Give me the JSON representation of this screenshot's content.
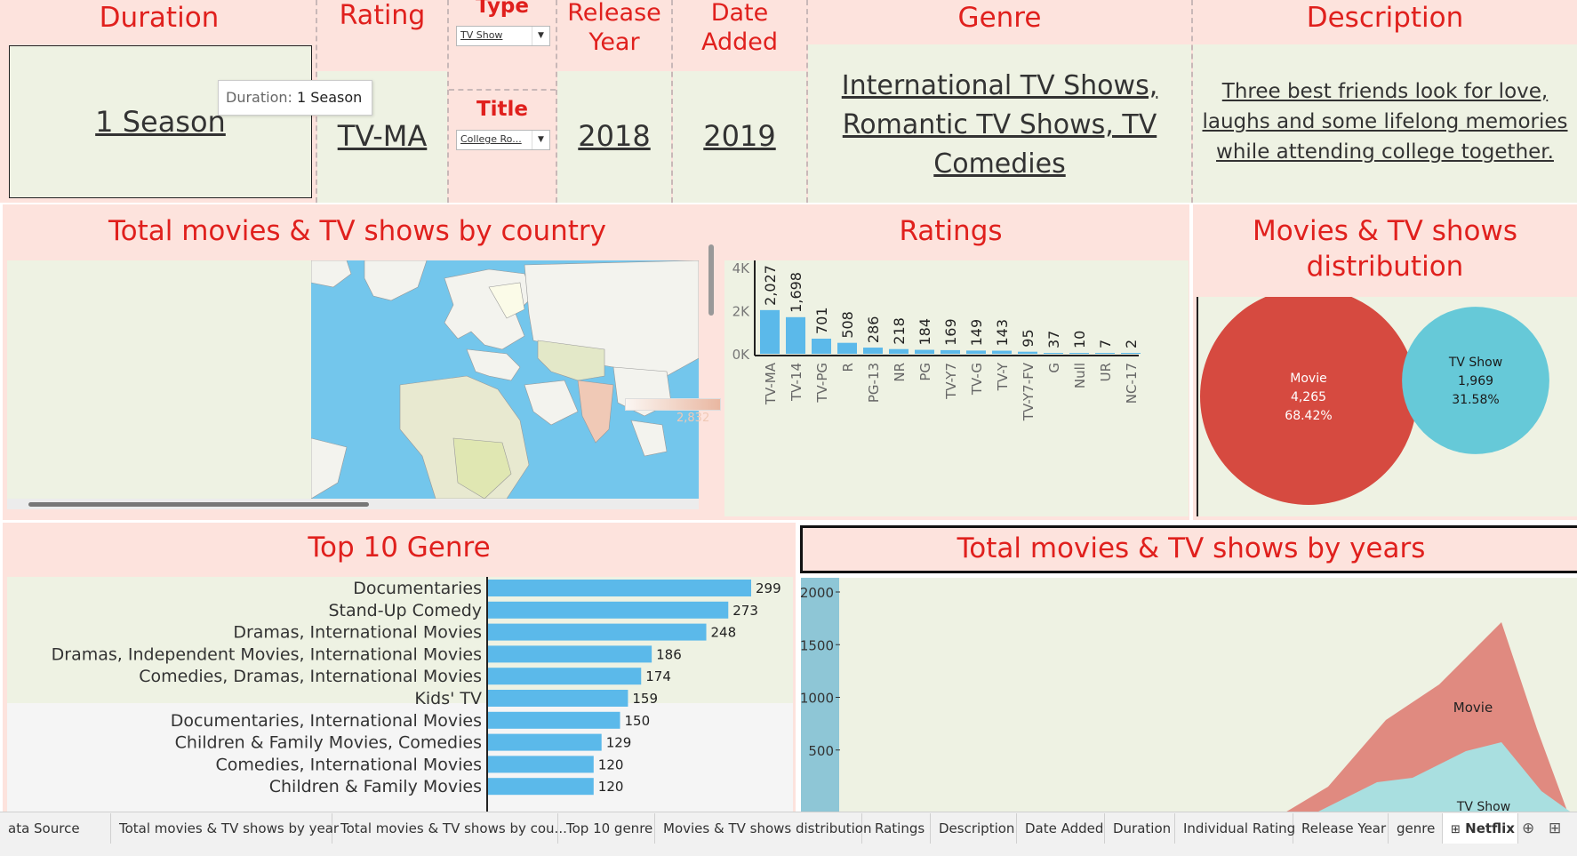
{
  "kpis": {
    "duration": {
      "title": "Duration",
      "value": "1 Season"
    },
    "rating": {
      "title": "Rating",
      "value": "TV-MA"
    },
    "type": {
      "title": "Type",
      "selected": "TV Show"
    },
    "title_filter": {
      "title": "Title",
      "selected": "College Ro..."
    },
    "release_year": {
      "title_line1": "Release",
      "title_line2": "Year",
      "value": "2018"
    },
    "date_added": {
      "title_line1": "Date",
      "title_line2": "Added",
      "value": "2019"
    },
    "genre": {
      "title": "Genre",
      "line1": "International TV Shows,",
      "line2": "Romantic TV Shows, TV",
      "line3": "Comedies"
    },
    "description": {
      "title": "Description",
      "line1": "Three best friends look for love,",
      "line2": "laughs and some lifelong memories",
      "line3": "while attending college together."
    }
  },
  "tooltip": {
    "label": "Duration:",
    "value": "1 Season"
  },
  "map_section": {
    "title": "Total movies & TV shows by country",
    "legend_max": "2,832"
  },
  "ratings_chart": {
    "title": "Ratings"
  },
  "distribution_chart": {
    "title_line1": "Movies & TV shows",
    "title_line2": "distribution"
  },
  "genre_chart": {
    "title": "Top 10 Genre",
    "partial_label": "Children & Family Movies",
    "partial_value": "120"
  },
  "years_chart": {
    "title": "Total movies & TV shows by years",
    "label_movie": "Movie",
    "label_tv": "TV Show"
  },
  "chart_data": [
    {
      "type": "bar",
      "title": "Ratings",
      "categories": [
        "TV-MA",
        "TV-14",
        "TV-PG",
        "R",
        "PG-13",
        "NR",
        "PG",
        "TV-Y7",
        "TV-G",
        "TV-Y",
        "TV-Y7-FV",
        "G",
        "Null",
        "UR",
        "NC-17"
      ],
      "values": [
        2027,
        1698,
        701,
        508,
        286,
        218,
        184,
        169,
        149,
        143,
        95,
        37,
        10,
        7,
        2
      ],
      "value_labels": [
        "2,027",
        "1,698",
        "701",
        "508",
        "286",
        "218",
        "184",
        "169",
        "149",
        "143",
        "95",
        "37",
        "10",
        "7",
        "2"
      ],
      "yticks": [
        "0K",
        "2K",
        "4K"
      ],
      "ylim": [
        0,
        4000
      ],
      "color": "#5bb9ea"
    },
    {
      "type": "pie",
      "title": "Movies & TV shows distribution",
      "categories": [
        "Movie",
        "TV Show"
      ],
      "values": [
        4265,
        1969
      ],
      "value_labels": [
        "4,265",
        "1,969"
      ],
      "percents": [
        "68.42%",
        "31.58%"
      ],
      "colors": [
        "#d64a40",
        "#66c9d8"
      ]
    },
    {
      "type": "bar",
      "title": "Top 10 Genre",
      "orientation": "horizontal",
      "categories": [
        "Documentaries",
        "Stand-Up Comedy",
        "Dramas, International Movies",
        "Dramas, Independent Movies, International Movies",
        "Comedies, Dramas, International Movies",
        "Kids' TV",
        "Documentaries, International Movies",
        "Children & Family Movies, Comedies",
        "Comedies, International Movies"
      ],
      "values": [
        299,
        273,
        248,
        186,
        174,
        159,
        150,
        129,
        120
      ],
      "color": "#5bb9ea"
    },
    {
      "type": "area",
      "title": "Total movies & TV shows by years",
      "yticks": [
        "500",
        "1000",
        "1500",
        "2000"
      ],
      "series": [
        {
          "name": "Movie",
          "color": "#e08a80"
        },
        {
          "name": "TV Show",
          "color": "#a9dfe0"
        }
      ]
    }
  ],
  "tabs": [
    "ata Source",
    "Total movies & TV shows by year",
    "Total movies & TV shows by cou...",
    "Top 10 genre",
    "Movies & TV shows distribution",
    "Ratings",
    "Description",
    "Date Added",
    "Duration",
    "Individual Rating",
    "Release Year",
    "genre",
    "Netflix"
  ]
}
